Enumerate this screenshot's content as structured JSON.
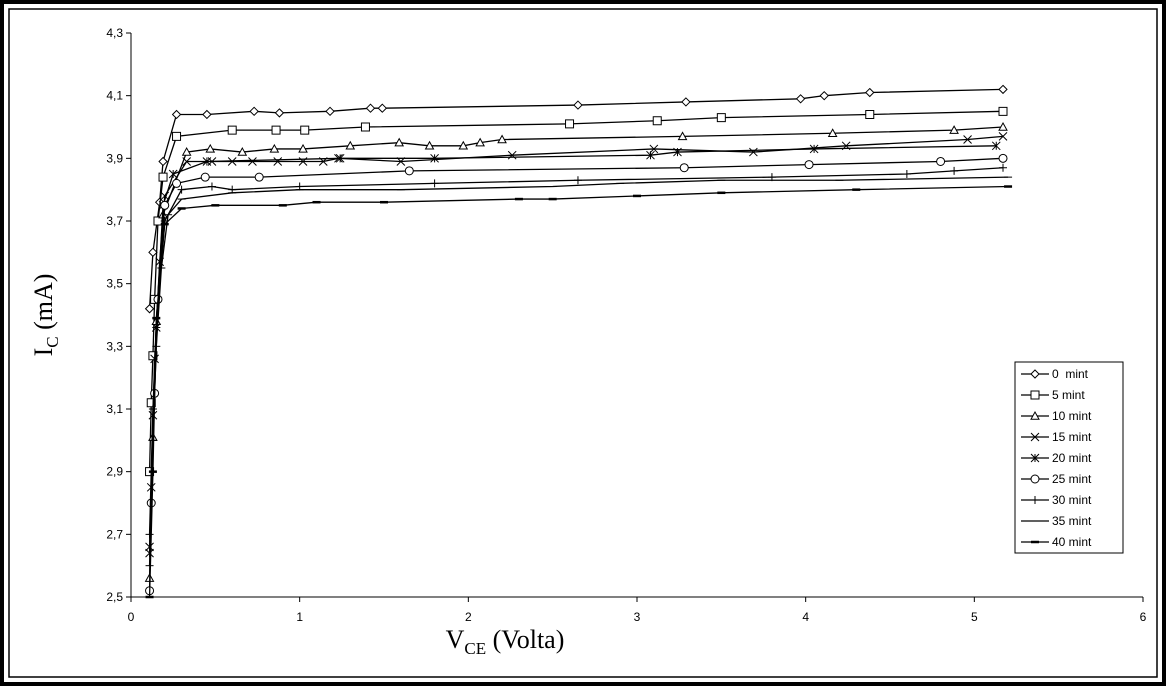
{
  "chart_data": {
    "type": "line",
    "ylabel": [
      "I",
      "C",
      " (mA)"
    ],
    "xlabel": [
      "V",
      "CE",
      " (Volta)"
    ],
    "xlim": [
      0,
      6
    ],
    "xticks": [
      0,
      1,
      2,
      3,
      4,
      5,
      6
    ],
    "ylim": [
      2.5,
      4.3
    ],
    "yticks": [
      {
        "value": 2.5,
        "label": "2,5"
      },
      {
        "value": 2.7,
        "label": "2,7"
      },
      {
        "value": 2.9,
        "label": "2,9"
      },
      {
        "value": 3.1,
        "label": "3,1"
      },
      {
        "value": 3.3,
        "label": "3,3"
      },
      {
        "value": 3.5,
        "label": "3,5"
      },
      {
        "value": 3.7,
        "label": "3,7"
      },
      {
        "value": 3.9,
        "label": "3,9"
      },
      {
        "value": 4.1,
        "label": "4,1"
      },
      {
        "value": 4.3,
        "label": "4,3"
      }
    ],
    "color": "#000000",
    "series": [
      {
        "name": "0  mint",
        "marker": "diamond",
        "x": [
          0.11,
          0.13,
          0.17,
          0.19,
          0.27,
          0.45,
          0.73,
          0.88,
          1.18,
          1.42,
          1.49,
          2.65,
          3.29,
          3.97,
          4.11,
          4.38,
          5.17
        ],
        "values": [
          3.42,
          3.6,
          3.76,
          3.89,
          4.04,
          4.04,
          4.05,
          4.045,
          4.05,
          4.06,
          4.06,
          4.07,
          4.08,
          4.09,
          4.1,
          4.11,
          4.12
        ]
      },
      {
        "name": "5 mint",
        "marker": "square",
        "x": [
          0.11,
          0.12,
          0.13,
          0.14,
          0.16,
          0.19,
          0.27,
          0.6,
          0.86,
          1.03,
          1.39,
          2.6,
          3.12,
          3.5,
          4.38,
          5.17
        ],
        "values": [
          2.9,
          3.12,
          3.27,
          3.45,
          3.7,
          3.84,
          3.97,
          3.99,
          3.99,
          3.99,
          4.0,
          4.01,
          4.02,
          4.03,
          4.04,
          4.05
        ]
      },
      {
        "name": "10 mint",
        "marker": "triangle",
        "x": [
          0.11,
          0.13,
          0.15,
          0.19,
          0.33,
          0.47,
          0.66,
          0.85,
          1.02,
          1.3,
          1.59,
          1.77,
          1.97,
          2.07,
          2.2,
          3.27,
          4.16,
          4.88,
          5.17
        ],
        "values": [
          2.56,
          3.01,
          3.38,
          3.72,
          3.92,
          3.93,
          3.92,
          3.93,
          3.93,
          3.94,
          3.95,
          3.94,
          3.94,
          3.95,
          3.96,
          3.97,
          3.98,
          3.99,
          4.0
        ]
      },
      {
        "name": "15 mint",
        "marker": "cross",
        "x": [
          0.11,
          0.12,
          0.14,
          0.17,
          0.2,
          0.33,
          0.48,
          0.6,
          0.72,
          0.87,
          1.02,
          1.14,
          1.23,
          1.6,
          2.26,
          3.1,
          3.69,
          4.24,
          4.96,
          5.17
        ],
        "values": [
          2.66,
          2.85,
          3.26,
          3.57,
          3.78,
          3.89,
          3.89,
          3.89,
          3.89,
          3.89,
          3.89,
          3.89,
          3.9,
          3.89,
          3.91,
          3.93,
          3.92,
          3.94,
          3.96,
          3.97
        ]
      },
      {
        "name": "20 mint",
        "marker": "star",
        "x": [
          0.11,
          0.13,
          0.15,
          0.19,
          0.25,
          0.45,
          1.24,
          1.8,
          3.08,
          3.24,
          4.05,
          5.13
        ],
        "values": [
          2.64,
          3.08,
          3.36,
          3.75,
          3.85,
          3.89,
          3.9,
          3.9,
          3.91,
          3.92,
          3.93,
          3.94
        ]
      },
      {
        "name": "25 mint",
        "marker": "circle",
        "x": [
          0.11,
          0.12,
          0.14,
          0.16,
          0.2,
          0.27,
          0.44,
          0.76,
          1.65,
          3.28,
          4.02,
          4.8,
          5.17
        ],
        "values": [
          2.52,
          2.8,
          3.15,
          3.45,
          3.75,
          3.82,
          3.84,
          3.84,
          3.86,
          3.87,
          3.88,
          3.89,
          3.9
        ]
      },
      {
        "name": "30 mint",
        "marker": "plus",
        "x": [
          0.11,
          0.13,
          0.15,
          0.2,
          0.3,
          0.48,
          0.6,
          1.0,
          1.8,
          2.65,
          3.8,
          4.6,
          4.88,
          5.17
        ],
        "values": [
          2.7,
          3.1,
          3.36,
          3.7,
          3.8,
          3.81,
          3.8,
          3.81,
          3.82,
          3.83,
          3.84,
          3.85,
          3.86,
          3.87
        ]
      },
      {
        "name": "35 mint",
        "marker": "dash",
        "x": [
          0.11,
          0.13,
          0.15,
          0.18,
          0.22,
          0.3,
          0.6,
          1.0,
          1.6,
          2.5,
          2.9,
          3.5,
          4.2,
          5.2
        ],
        "values": [
          2.6,
          3.0,
          3.3,
          3.55,
          3.72,
          3.77,
          3.79,
          3.8,
          3.8,
          3.81,
          3.82,
          3.83,
          3.83,
          3.84
        ]
      },
      {
        "name": "40 mint",
        "marker": "thickdash",
        "x": [
          0.11,
          0.13,
          0.15,
          0.2,
          0.3,
          0.5,
          0.9,
          1.1,
          1.5,
          2.3,
          2.5,
          3.0,
          3.5,
          4.3,
          5.2
        ],
        "values": [
          2.5,
          2.9,
          3.39,
          3.69,
          3.74,
          3.75,
          3.75,
          3.76,
          3.76,
          3.77,
          3.77,
          3.78,
          3.79,
          3.8,
          3.81
        ]
      }
    ]
  }
}
